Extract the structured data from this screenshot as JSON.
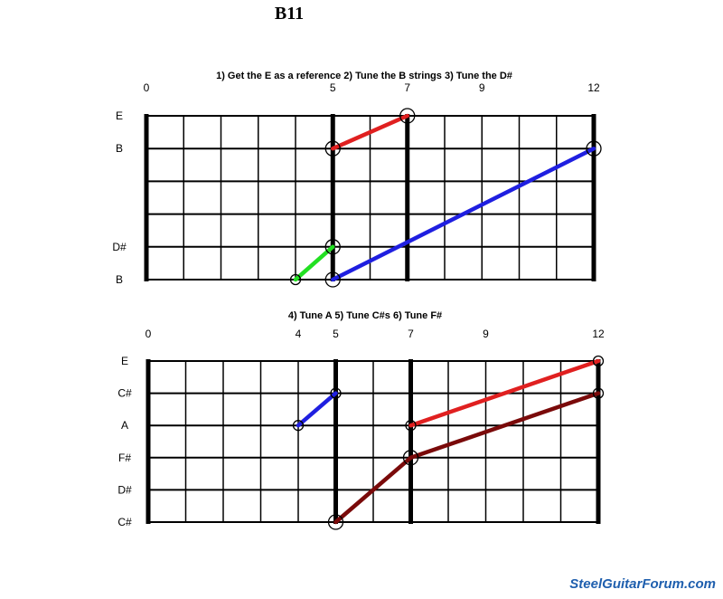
{
  "title": "B11",
  "watermark": "SteelGuitarForum.com",
  "diagrams": [
    {
      "id": "top",
      "steps_text": "1) Get the E as a reference 2) Tune the B strings  3) Tune the D#",
      "fret_labels": [
        "0",
        "5",
        "7",
        "9",
        "12"
      ],
      "string_labels": [
        "E",
        "B",
        "",
        "",
        "D#",
        "B"
      ],
      "bold_frets": [
        0,
        5,
        7,
        12
      ],
      "connections": [
        {
          "color": "#e02020",
          "points": [
            [
              5,
              1
            ],
            [
              7,
              0
            ]
          ]
        },
        {
          "color": "#1f1fe0",
          "points": [
            [
              5,
              5
            ],
            [
              12,
              1
            ]
          ]
        },
        {
          "color": "#22e022",
          "points": [
            [
              4,
              5
            ],
            [
              5,
              4
            ]
          ]
        }
      ],
      "markers": [
        {
          "fret": 7,
          "string": 0,
          "style": "big"
        },
        {
          "fret": 5,
          "string": 1,
          "style": "big"
        },
        {
          "fret": 12,
          "string": 1,
          "style": "big"
        },
        {
          "fret": 5,
          "string": 4,
          "style": "big"
        },
        {
          "fret": 5,
          "string": 5,
          "style": "big"
        },
        {
          "fret": 4,
          "string": 5,
          "style": "small"
        }
      ]
    },
    {
      "id": "bottom",
      "steps_text": "4) Tune A   5) Tune C#s 6) Tune F#",
      "fret_labels": [
        "0",
        "4",
        "5",
        "7",
        "9",
        "12"
      ],
      "string_labels": [
        "E",
        "C#",
        "A",
        "F#",
        "D#",
        "C#"
      ],
      "bold_frets": [
        0,
        5,
        7,
        12
      ],
      "connections": [
        {
          "color": "#1f1fe0",
          "points": [
            [
              4,
              2
            ],
            [
              5,
              1
            ]
          ]
        },
        {
          "color": "#e02020",
          "points": [
            [
              7,
              2
            ],
            [
              12,
              0
            ]
          ]
        },
        {
          "color": "#7a0a0a",
          "points": [
            [
              5,
              5
            ],
            [
              7,
              3
            ],
            [
              12,
              1
            ]
          ]
        }
      ],
      "markers": [
        {
          "fret": 5,
          "string": 1,
          "style": "small"
        },
        {
          "fret": 4,
          "string": 2,
          "style": "small"
        },
        {
          "fret": 7,
          "string": 2,
          "style": "small"
        },
        {
          "fret": 12,
          "string": 0,
          "style": "small"
        },
        {
          "fret": 12,
          "string": 1,
          "style": "small"
        },
        {
          "fret": 7,
          "string": 3,
          "style": "big"
        },
        {
          "fret": 5,
          "string": 5,
          "style": "big"
        }
      ]
    }
  ]
}
